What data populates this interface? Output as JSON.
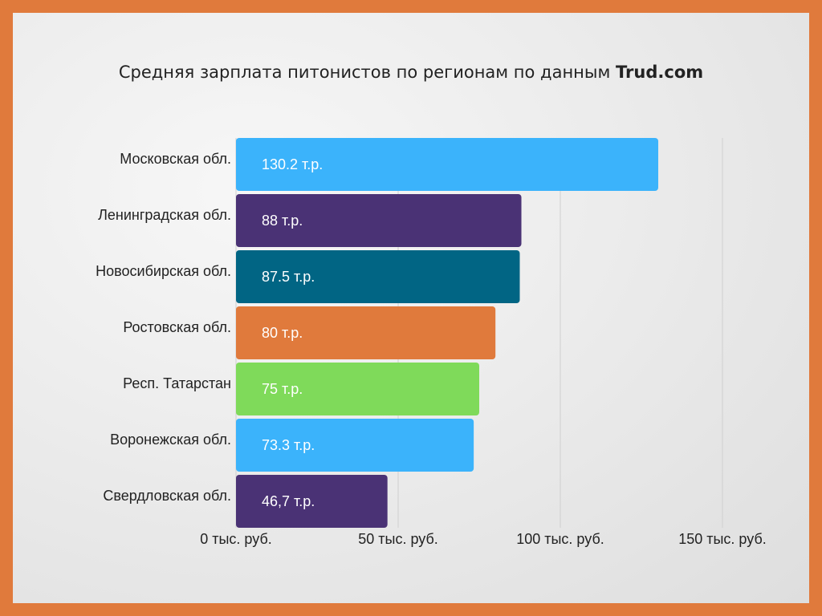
{
  "chart_data": {
    "type": "bar",
    "orientation": "horizontal",
    "title": "Средняя зарплата питонистов по регионам по данным",
    "title_brand": "Trud.com",
    "categories": [
      "Московская обл.",
      "Ленинградская обл.",
      "Новосибирская обл.",
      "Ростовская обл.",
      "Респ. Татарстан",
      "Воронежская обл.",
      "Свердловская обл."
    ],
    "values": [
      130.2,
      88,
      87.5,
      80,
      75,
      73.3,
      46.7
    ],
    "value_labels": [
      "130.2 т.р.",
      "88 т.р.",
      "87.5 т.р.",
      "80 т.р.",
      "75 т.р.",
      "73.3 т.р.",
      "46,7 т.р."
    ],
    "colors": [
      "#3bb3fb",
      "#4a3275",
      "#016584",
      "#e07a3c",
      "#7fda5a",
      "#3bb3fb",
      "#4a3275"
    ],
    "xlim": [
      0,
      150
    ],
    "xticks": [
      0,
      50,
      100,
      150
    ],
    "xtick_labels": [
      "0 тыс. руб.",
      "50 тыс. руб.",
      "100 тыс. руб.",
      "150 тыс. руб."
    ],
    "grid": true,
    "background": "#ebebeb",
    "frame_color": "#e07a3c"
  }
}
